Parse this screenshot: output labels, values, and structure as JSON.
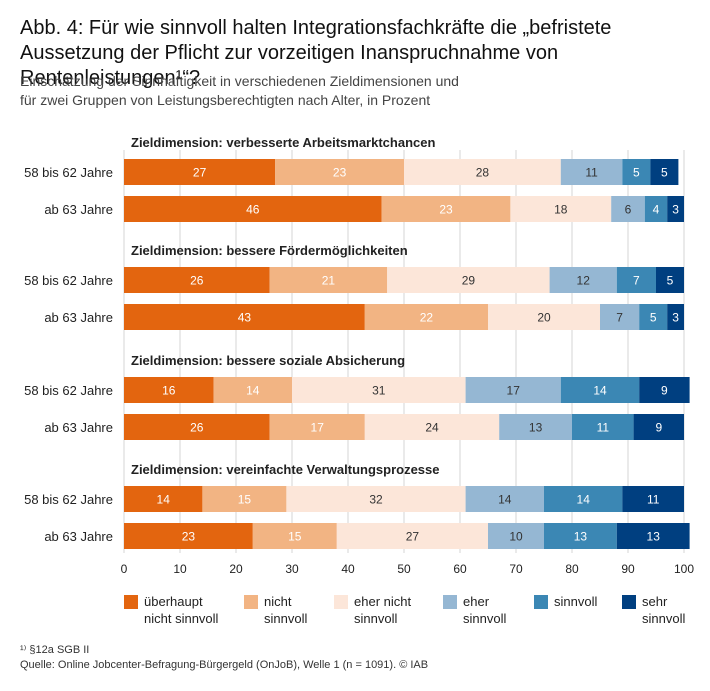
{
  "title": "Abb. 4: Für wie sinnvoll halten Integrationsfachkräfte die „befristete Aussetzung der Pflicht zur vorzeitigen Inanspruchnahme von Rentenleistungen¹“?",
  "subtitle_line1": "Einschätzung der Sinnhaftigkeit in verschiedenen Zieldimensionen und",
  "subtitle_line2": "für zwei Gruppen von Leistungsberechtigten nach Alter, in Prozent",
  "footnote": "¹⁾ §12a SGB II",
  "source": "Quelle: Online Jobcenter-Befragung-Bürgergeld (OnJoB), Welle 1 (n = 1091).  © IAB",
  "colors": {
    "ueberhaupt_nicht_sinnvoll": "#e3650f",
    "nicht_sinnvoll": "#f2b483",
    "eher_nicht_sinnvoll": "#fce6d9",
    "eher_sinnvoll": "#95b7d3",
    "sinnvoll": "#3b87b4",
    "sehr_sinnvoll": "#003f80"
  },
  "legend": [
    {
      "line1": "überhaupt",
      "line2": "nicht sinnvoll"
    },
    {
      "line1": "nicht",
      "line2": "sinnvoll"
    },
    {
      "line1": "eher nicht",
      "line2": "sinnvoll"
    },
    {
      "line1": "eher",
      "line2": "sinnvoll"
    },
    {
      "line1": "sinnvoll",
      "line2": ""
    },
    {
      "line1": "sehr",
      "line2": "sinnvoll"
    }
  ],
  "chart_data": {
    "type": "bar",
    "orientation": "horizontal",
    "stacked": true,
    "xlim": [
      0,
      100
    ],
    "xticks": [
      0,
      10,
      20,
      30,
      40,
      50,
      60,
      70,
      80,
      90,
      100
    ],
    "series_names": [
      "überhaupt nicht sinnvoll",
      "nicht sinnvoll",
      "eher nicht sinnvoll",
      "eher sinnvoll",
      "sinnvoll",
      "sehr sinnvoll"
    ],
    "groups": [
      {
        "title": "Zieldimension: verbesserte Arbeitsmarktchancen",
        "rows": [
          {
            "label": "58 bis 62 Jahre",
            "values": [
              27,
              23,
              28,
              11,
              5,
              5
            ]
          },
          {
            "label": "ab 63 Jahre",
            "values": [
              46,
              23,
              18,
              6,
              4,
              3
            ]
          }
        ]
      },
      {
        "title": "Zieldimension: bessere Fördermöglichkeiten",
        "rows": [
          {
            "label": "58 bis 62 Jahre",
            "values": [
              26,
              21,
              29,
              12,
              7,
              5
            ]
          },
          {
            "label": "ab 63 Jahre",
            "values": [
              43,
              22,
              20,
              7,
              5,
              3
            ]
          }
        ]
      },
      {
        "title": "Zieldimension: bessere soziale Absicherung",
        "rows": [
          {
            "label": "58 bis 62 Jahre",
            "values": [
              16,
              14,
              31,
              17,
              14,
              9
            ]
          },
          {
            "label": "ab 63 Jahre",
            "values": [
              26,
              17,
              24,
              13,
              11,
              9
            ]
          }
        ]
      },
      {
        "title": "Zieldimension: vereinfachte Verwaltungsprozesse",
        "rows": [
          {
            "label": "58 bis 62 Jahre",
            "values": [
              14,
              15,
              32,
              14,
              14,
              11
            ]
          },
          {
            "label": "ab 63 Jahre",
            "values": [
              23,
              15,
              27,
              10,
              13,
              13
            ]
          }
        ]
      }
    ]
  }
}
